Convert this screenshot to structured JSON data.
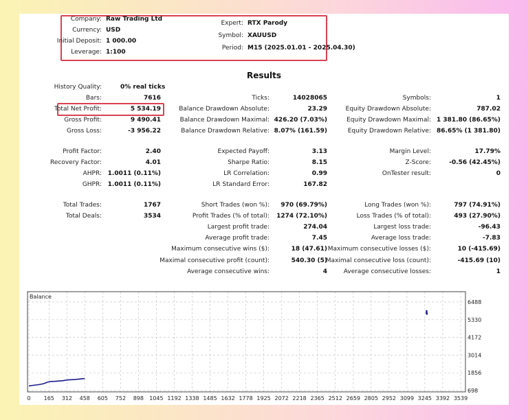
{
  "header": {
    "left": [
      {
        "label": "Company:",
        "value": "Raw Trading Ltd"
      },
      {
        "label": "Currency:",
        "value": "USD"
      },
      {
        "label": "Initial Deposit:",
        "value": "1 000.00"
      },
      {
        "label": "Leverage:",
        "value": "1:100"
      }
    ],
    "right": [
      {
        "label": "Expert:",
        "value": "RTX Parody"
      },
      {
        "label": "Symbol:",
        "value": "XAUUSD"
      },
      {
        "label": "Period:",
        "value": "M15 (2025.01.01 - 2025.04.30)"
      }
    ]
  },
  "results_title": "Results",
  "stats": {
    "col1": [
      {
        "label": "History Quality:",
        "value": "0% real ticks",
        "row": 0,
        "align": "left"
      },
      {
        "label": "Bars:",
        "value": "7616",
        "row": 1
      },
      {
        "label": "Total Net Profit:",
        "value": "5 534.19",
        "row": 2,
        "highlight": true
      },
      {
        "label": "Gross Profit:",
        "value": "9 490.41",
        "row": 3
      },
      {
        "label": "Gross Loss:",
        "value": "-3 956.22",
        "row": 4
      },
      {
        "label": "Profit Factor:",
        "value": "2.40",
        "row": 5
      },
      {
        "label": "Recovery Factor:",
        "value": "4.01",
        "row": 6
      },
      {
        "label": "AHPR:",
        "value": "1.0011 (0.11%)",
        "row": 7
      },
      {
        "label": "GHPR:",
        "value": "1.0011 (0.11%)",
        "row": 8
      },
      {
        "label": "Total Trades:",
        "value": "1767",
        "row": 9
      },
      {
        "label": "Total Deals:",
        "value": "3534",
        "row": 10
      }
    ],
    "col2": [
      {
        "label": "Ticks:",
        "value": "14028065",
        "row": 1
      },
      {
        "label": "Balance Drawdown Absolute:",
        "value": "23.29",
        "row": 2
      },
      {
        "label": "Balance Drawdown Maximal:",
        "value": "426.20 (7.03%)",
        "row": 3
      },
      {
        "label": "Balance Drawdown Relative:",
        "value": "8.07% (161.59)",
        "row": 4
      },
      {
        "label": "Expected Payoff:",
        "value": "3.13",
        "row": 5
      },
      {
        "label": "Sharpe Ratio:",
        "value": "8.15",
        "row": 6
      },
      {
        "label": "LR Correlation:",
        "value": "0.99",
        "row": 7
      },
      {
        "label": "LR Standard Error:",
        "value": "167.82",
        "row": 8
      },
      {
        "label": "Short Trades (won %):",
        "value": "970 (69.79%)",
        "row": 9
      },
      {
        "label": "Profit Trades (% of total):",
        "value": "1274 (72.10%)",
        "row": 10
      },
      {
        "label": "Largest profit trade:",
        "value": "274.04",
        "row": 11
      },
      {
        "label": "Average profit trade:",
        "value": "7.45",
        "row": 12
      },
      {
        "label": "Maximum consecutive wins ($):",
        "value": "18 (47.61)",
        "row": 13
      },
      {
        "label": "Maximal consecutive profit (count):",
        "value": "540.30 (5)",
        "row": 14
      },
      {
        "label": "Average consecutive wins:",
        "value": "4",
        "row": 15
      }
    ],
    "col3": [
      {
        "label": "Symbols:",
        "value": "1",
        "row": 1
      },
      {
        "label": "Equity Drawdown Absolute:",
        "value": "787.02",
        "row": 2
      },
      {
        "label": "Equity Drawdown Maximal:",
        "value": "1 381.80 (86.65%)",
        "row": 3
      },
      {
        "label": "Equity Drawdown Relative:",
        "value": "86.65% (1 381.80)",
        "row": 4
      },
      {
        "label": "Margin Level:",
        "value": "17.79%",
        "row": 5
      },
      {
        "label": "Z-Score:",
        "value": "-0.56 (42.45%)",
        "row": 6
      },
      {
        "label": "OnTester result:",
        "value": "0",
        "row": 7
      },
      {
        "label": "Long Trades (won %):",
        "value": "797 (74.91%)",
        "row": 9
      },
      {
        "label": "Loss Trades (% of total):",
        "value": "493 (27.90%)",
        "row": 10
      },
      {
        "label": "Largest loss trade:",
        "value": "-96.43",
        "row": 11
      },
      {
        "label": "Average loss trade:",
        "value": "-7.83",
        "row": 12
      },
      {
        "label": "Maximum consecutive losses ($):",
        "value": "10 (-415.69)",
        "row": 13
      },
      {
        "label": "Maximal consecutive loss (count):",
        "value": "-415.69 (10)",
        "row": 14
      },
      {
        "label": "Average consecutive losses:",
        "value": "1",
        "row": 15
      }
    ]
  },
  "colors": {
    "highlight": "#d9414f",
    "balance_line": "#1a1a8c",
    "grid": "#c8c8c8"
  },
  "chart_data": {
    "type": "line",
    "title": "Balance",
    "xlim": [
      0,
      3539
    ],
    "ylim": [
      698,
      6488
    ],
    "x_ticks": [
      0,
      165,
      312,
      458,
      605,
      752,
      898,
      1045,
      1192,
      1338,
      1485,
      1632,
      1778,
      1925,
      2072,
      2218,
      2365,
      2512,
      2659,
      2805,
      2952,
      3099,
      3245,
      3392,
      3539
    ],
    "y_ticks": [
      698,
      1856,
      3014,
      4172,
      5330,
      6488
    ],
    "grid": true,
    "series": [
      {
        "x": [
          0,
          40,
          80,
          120,
          150,
          170,
          220,
          280,
          320,
          380,
          458
        ],
        "y": [
          1000,
          1040,
          1080,
          1140,
          1230,
          1280,
          1300,
          1340,
          1390,
          1420,
          1480
        ]
      },
      {
        "x": [
          3258,
          3260,
          3262,
          3264
        ],
        "y": [
          5700,
          5950,
          5800,
          5650
        ]
      }
    ]
  }
}
